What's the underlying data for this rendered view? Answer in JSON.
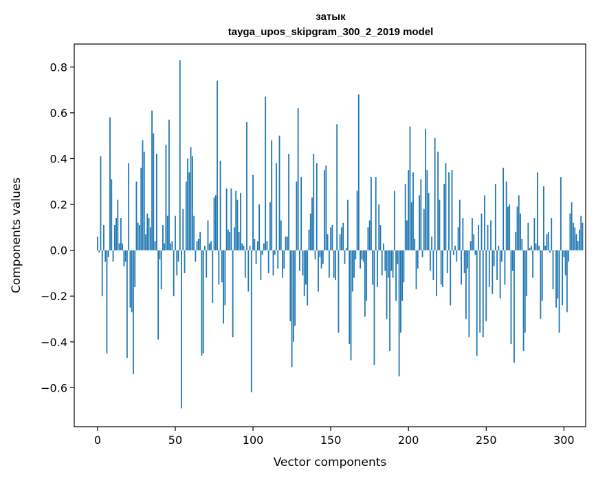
{
  "chart_data": {
    "type": "bar",
    "title": "затык",
    "subtitle": "tayga_upos_skipgram_300_2_2019 model",
    "xlabel": "Vector components",
    "ylabel": "Components values",
    "xlim": [
      -15,
      314
    ],
    "ylim": [
      -0.77,
      0.9
    ],
    "xticks": [
      0,
      50,
      100,
      150,
      200,
      250,
      300
    ],
    "xtick_labels": [
      "0",
      "50",
      "100",
      "150",
      "200",
      "250",
      "300"
    ],
    "yticks": [
      -0.6,
      -0.4,
      -0.2,
      0.0,
      0.2,
      0.4,
      0.6,
      0.8
    ],
    "ytick_labels": [
      "−0.6",
      "−0.4",
      "−0.2",
      "0.0",
      "0.2",
      "0.4",
      "0.6",
      "0.8"
    ],
    "bar_color": "#1f77b4",
    "grid": false,
    "values": [
      0.06,
      -0.01,
      0.41,
      -0.2,
      0.11,
      -0.05,
      -0.45,
      -0.03,
      0.58,
      0.31,
      -0.05,
      0.11,
      0.14,
      0.22,
      0.03,
      0.14,
      0.03,
      -0.07,
      -0.05,
      -0.47,
      0.38,
      -0.25,
      -0.27,
      -0.54,
      -0.16,
      0.3,
      0.12,
      0.11,
      0.36,
      0.48,
      0.43,
      0.07,
      0.16,
      0.14,
      0.1,
      0.61,
      0.51,
      0.04,
      0.42,
      -0.39,
      -0.04,
      -0.17,
      0.11,
      0.03,
      0.46,
      0.15,
      0.57,
      0.03,
      0.04,
      -0.2,
      0.15,
      -0.11,
      -0.05,
      0.83,
      -0.69,
      0.18,
      -0.1,
      0.3,
      0.4,
      0.34,
      0.45,
      0.41,
      0.15,
      -0.05,
      0.04,
      0.05,
      0.08,
      -0.46,
      -0.45,
      0.02,
      -0.12,
      0.13,
      0.03,
      0.04,
      -0.23,
      0.23,
      0.24,
      0.74,
      -0.15,
      0.39,
      -0.14,
      -0.32,
      -0.24,
      0.27,
      0.09,
      0.08,
      0.27,
      -0.38,
      0.1,
      0.26,
      0.22,
      0.08,
      0.25,
      0.03,
      0.02,
      -0.12,
      0.56,
      -0.18,
      0.02,
      -0.62,
      0.33,
      0.05,
      -0.06,
      0.04,
      0.2,
      -0.13,
      -0.02,
      0.03,
      0.67,
      0.04,
      -0.1,
      0.21,
      0.48,
      -0.11,
      -0.02,
      0.38,
      -0.08,
      0.5,
      0.13,
      -0.12,
      -0.08,
      0.06,
      0.06,
      0.42,
      -0.31,
      -0.51,
      -0.4,
      -0.33,
      0.3,
      0.62,
      -0.09,
      0.32,
      -0.11,
      -0.2,
      -0.15,
      -0.24,
      0.09,
      0.16,
      0.23,
      0.42,
      -0.04,
      0.38,
      -0.18,
      -0.03,
      -0.08,
      -0.06,
      0.35,
      0.37,
      0.07,
      -0.12,
      0.1,
      0.11,
      -0.12,
      -0.13,
      0.55,
      -0.36,
      0.07,
      0.1,
      0.12,
      -0.06,
      0.01,
      0.22,
      -0.41,
      -0.48,
      -0.18,
      -0.12,
      -0.04,
      0.26,
      0.68,
      -0.08,
      -0.04,
      -0.05,
      -0.29,
      -0.22,
      0.1,
      0.13,
      0.32,
      -0.15,
      -0.5,
      0.32,
      -0.16,
      0.2,
      0.11,
      -0.11,
      0.03,
      -0.09,
      -0.3,
      -0.12,
      -0.44,
      -0.09,
      -0.12,
      0.26,
      -0.22,
      -0.06,
      -0.55,
      -0.36,
      -0.22,
      -0.14,
      0.29,
      0.13,
      0.35,
      0.54,
      0.21,
      0.34,
      0.05,
      -0.17,
      -0.08,
      0.24,
      0.31,
      -0.03,
      0.18,
      0.53,
      0.35,
      0.25,
      -0.09,
      0.06,
      -0.13,
      0.49,
      -0.2,
      0.43,
      0.22,
      -0.15,
      -0.16,
      0.29,
      0.38,
      -0.1,
      0.34,
      -0.24,
      0.35,
      -0.02,
      0.02,
      -0.05,
      0.1,
      0.22,
      -0.15,
      0.14,
      -0.1,
      -0.3,
      -0.08,
      -0.38,
      0.04,
      0.14,
      0.07,
      -0.02,
      -0.46,
      0.11,
      -0.36,
      0.16,
      -0.38,
      0.24,
      -0.31,
      0.11,
      -0.16,
      0.13,
      -0.19,
      -0.07,
      0.29,
      -0.13,
      0.02,
      -0.21,
      -0.05,
      0.36,
      -0.15,
      0.3,
      0.19,
      0.2,
      -0.41,
      -0.09,
      -0.49,
      0.08,
      0.19,
      0.24,
      0.16,
      0.05,
      -0.44,
      -0.36,
      -0.2,
      0.12,
      0.01,
      0.02,
      -0.12,
      0.14,
      0.03,
      0.34,
      0.02,
      -0.3,
      -0.22,
      0.28,
      0.02,
      0.07,
      0.08,
      -0.01,
      0.14,
      -0.17,
      0.0,
      -0.25,
      -0.21,
      -0.36,
      0.32,
      -0.24,
      -0.03,
      -0.11,
      -0.27,
      -0.05,
      0.16,
      0.21,
      0.12,
      0.1,
      0.07,
      0.04,
      0.09,
      0.15,
      0.12
    ]
  }
}
